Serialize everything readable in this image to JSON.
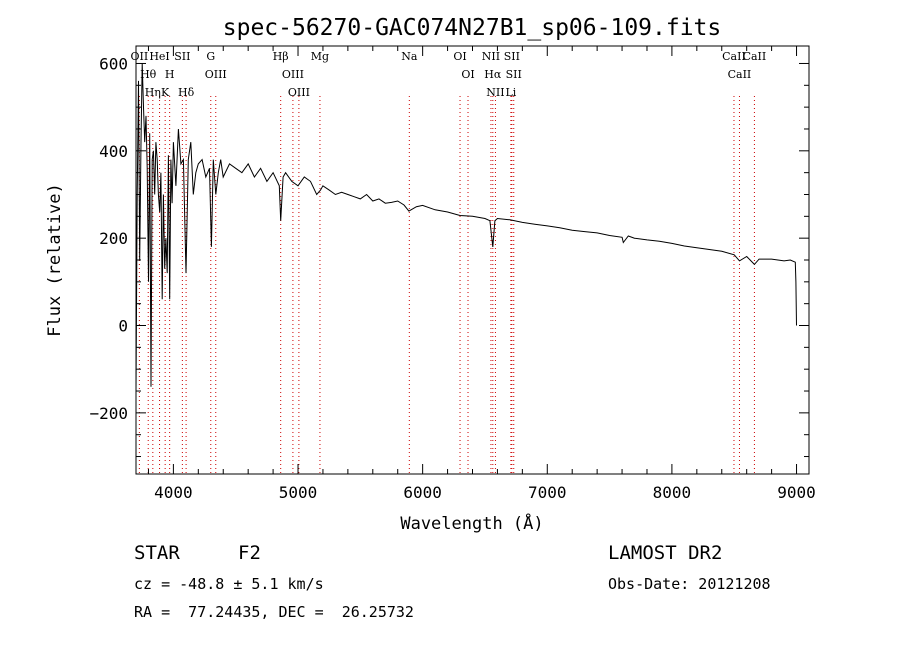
{
  "chart_data": {
    "type": "line",
    "title": "spec-56270-GAC074N27B1_sp06-109.fits",
    "xlabel": "Wavelength (Å)",
    "ylabel": "Flux (relative)",
    "xlim": [
      3700,
      9100
    ],
    "ylim": [
      -340,
      640
    ],
    "x_ticks": [
      4000,
      5000,
      6000,
      7000,
      8000,
      9000
    ],
    "y_ticks": [
      -200,
      0,
      200,
      400,
      600
    ],
    "grid": false,
    "line_color": "#000000",
    "marker_color": "#cc0000",
    "series": [
      {
        "x": [
          3700,
          3710,
          3720,
          3730,
          3740,
          3750,
          3760,
          3770,
          3780,
          3790,
          3800,
          3810,
          3820,
          3830,
          3840,
          3850,
          3860,
          3870,
          3880,
          3890,
          3900,
          3910,
          3920,
          3930,
          3940,
          3950,
          3960,
          3970,
          3980,
          3990,
          4000,
          4020,
          4040,
          4060,
          4080,
          4101,
          4120,
          4140,
          4160,
          4180,
          4200,
          4230,
          4260,
          4290,
          4305,
          4320,
          4340,
          4360,
          4380,
          4400,
          4450,
          4500,
          4550,
          4600,
          4650,
          4700,
          4750,
          4800,
          4850,
          4861,
          4880,
          4900,
          4950,
          5000,
          5050,
          5100,
          5150,
          5180,
          5200,
          5250,
          5300,
          5350,
          5400,
          5450,
          5500,
          5550,
          5600,
          5650,
          5700,
          5750,
          5800,
          5850,
          5890,
          5950,
          6000,
          6100,
          6200,
          6300,
          6400,
          6500,
          6540,
          6563,
          6580,
          6600,
          6700,
          6800,
          6900,
          7000,
          7100,
          7200,
          7300,
          7400,
          7500,
          7600,
          7610,
          7650,
          7700,
          7800,
          7900,
          8000,
          8100,
          8200,
          8300,
          8400,
          8500,
          8542,
          8600,
          8662,
          8700,
          8800,
          8900,
          8950,
          8990,
          8995,
          9000
        ],
        "values": [
          -150,
          300,
          560,
          150,
          420,
          600,
          500,
          420,
          480,
          360,
          100,
          440,
          -140,
          380,
          400,
          300,
          420,
          380,
          300,
          260,
          350,
          60,
          300,
          130,
          200,
          120,
          390,
          60,
          380,
          280,
          420,
          320,
          450,
          370,
          380,
          120,
          380,
          420,
          300,
          350,
          370,
          380,
          340,
          360,
          180,
          380,
          300,
          350,
          380,
          340,
          370,
          360,
          350,
          370,
          340,
          360,
          330,
          350,
          320,
          240,
          340,
          350,
          330,
          320,
          340,
          330,
          300,
          310,
          320,
          310,
          300,
          305,
          300,
          295,
          290,
          300,
          285,
          290,
          280,
          282,
          285,
          276,
          262,
          272,
          275,
          265,
          260,
          252,
          250,
          245,
          240,
          180,
          240,
          245,
          242,
          236,
          232,
          228,
          224,
          218,
          215,
          212,
          206,
          202,
          190,
          205,
          200,
          196,
          193,
          188,
          182,
          178,
          174,
          170,
          162,
          148,
          158,
          140,
          152,
          152,
          148,
          150,
          145,
          100,
          0
        ]
      }
    ],
    "line_markers": [
      {
        "x": 3727,
        "label": "OII"
      },
      {
        "x": 3798,
        "label": "Hθ"
      },
      {
        "x": 3835,
        "label": "Hη"
      },
      {
        "x": 3889,
        "label": "HeI"
      },
      {
        "x": 3934,
        "label": "K"
      },
      {
        "x": 3970,
        "label": "H"
      },
      {
        "x": 4072,
        "label": "SII"
      },
      {
        "x": 4102,
        "label": "Hδ"
      },
      {
        "x": 4300,
        "label": "G"
      },
      {
        "x": 4340,
        "label": "OIII"
      },
      {
        "x": 4861,
        "label": "Hβ"
      },
      {
        "x": 4959,
        "label": "OIII"
      },
      {
        "x": 5007,
        "label": "OIII"
      },
      {
        "x": 5176,
        "label": "Mg"
      },
      {
        "x": 5893,
        "label": "Na"
      },
      {
        "x": 6300,
        "label": "OI"
      },
      {
        "x": 6364,
        "label": "OI"
      },
      {
        "x": 6548,
        "label": "NII"
      },
      {
        "x": 6563,
        "label": "Hα"
      },
      {
        "x": 6584,
        "label": "NII"
      },
      {
        "x": 6708,
        "label": "Li"
      },
      {
        "x": 6716,
        "label": "SII"
      },
      {
        "x": 6731,
        "label": "SII"
      },
      {
        "x": 8498,
        "label": "CaII"
      },
      {
        "x": 8542,
        "label": "CaII"
      },
      {
        "x": 8662,
        "label": "CaII"
      }
    ]
  },
  "info": {
    "object_class": "STAR",
    "subclass": "F2",
    "velocity": "cz = -48.8 ± 5.1 km/s",
    "coords": "RA =  77.24435, DEC =  26.25732",
    "survey": "LAMOST DR2",
    "obs_date": "Obs-Date: 20121208"
  }
}
